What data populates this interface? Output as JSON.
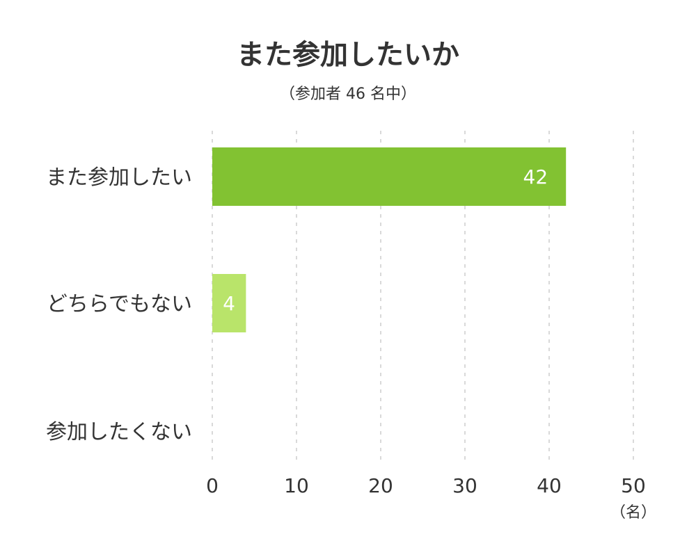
{
  "chart_data": {
    "type": "bar",
    "orientation": "horizontal",
    "title": "また参加したいか",
    "subtitle": "（参加者 46 名中）",
    "categories": [
      "また参加したい",
      "どちらでもない",
      "参加したくない"
    ],
    "values": [
      42,
      4,
      0
    ],
    "colors": [
      "#82c232",
      "#b9e46a",
      "#d6ef9c"
    ],
    "xlim": [
      0,
      50
    ],
    "xticks": [
      "0",
      "10",
      "20",
      "30",
      "40",
      "50"
    ],
    "xunit": "（名）",
    "grid": true,
    "data_labels": true
  }
}
